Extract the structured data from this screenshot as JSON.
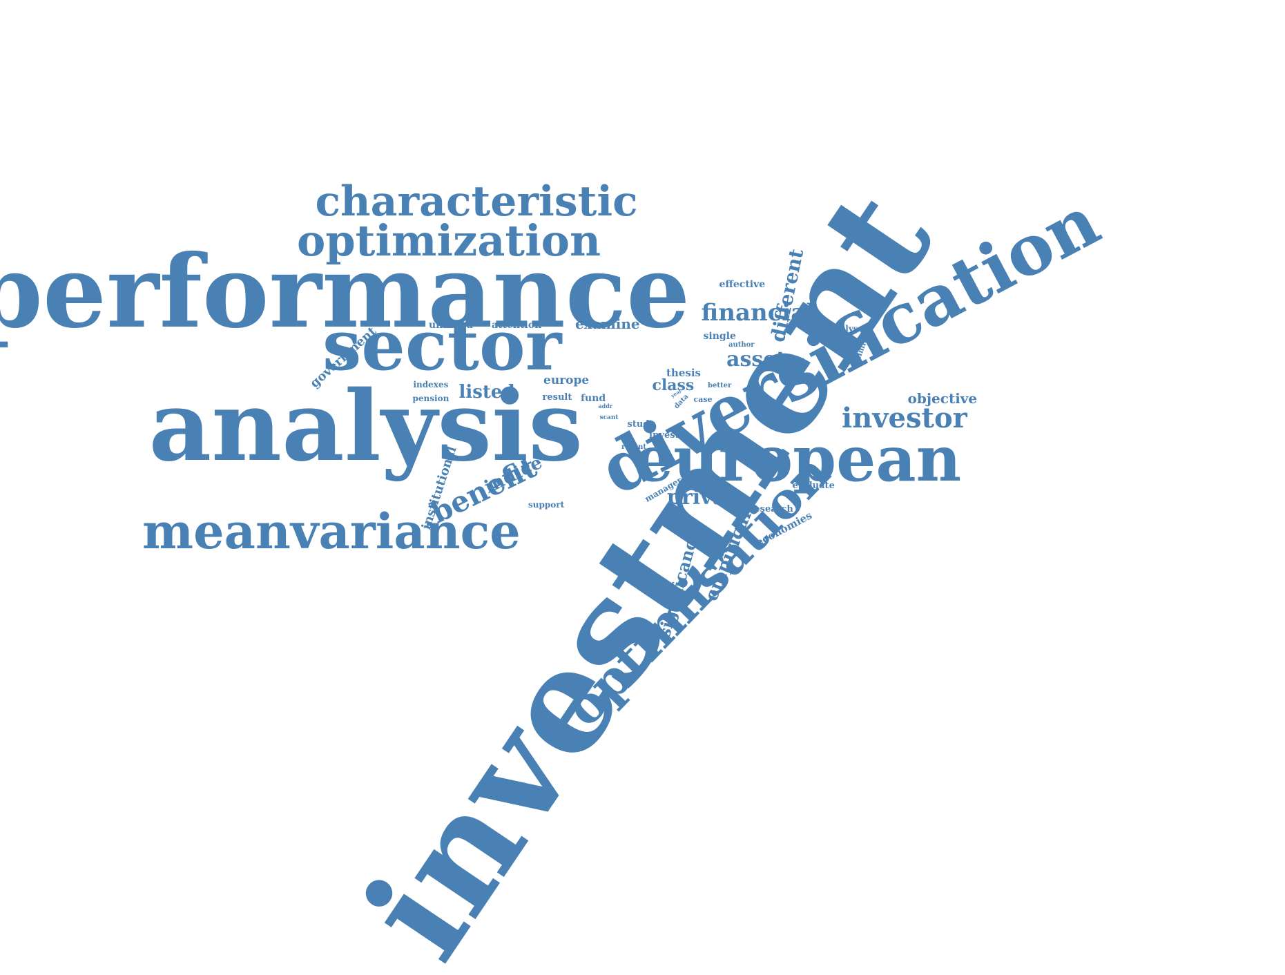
{
  "colors": {
    "word": "#4a81b4",
    "background": "#ffffff"
  },
  "words": [
    {
      "text": "investment",
      "weight": 1.0,
      "orientation": "diagonal-up"
    },
    {
      "text": "performance",
      "weight": 0.62,
      "orientation": "horizontal"
    },
    {
      "text": "analysis",
      "weight": 0.6,
      "orientation": "horizontal"
    },
    {
      "text": "diversification",
      "weight": 0.44,
      "orientation": "diagonal-up"
    },
    {
      "text": "sector",
      "weight": 0.44,
      "orientation": "horizontal"
    },
    {
      "text": "european",
      "weight": 0.4,
      "orientation": "horizontal"
    },
    {
      "text": "optimisation",
      "weight": 0.34,
      "orientation": "diagonal-up"
    },
    {
      "text": "meanvariance",
      "weight": 0.3,
      "orientation": "horizontal"
    },
    {
      "text": "optimization",
      "weight": 0.3,
      "orientation": "horizontal"
    },
    {
      "text": "characteristic",
      "weight": 0.28,
      "orientation": "horizontal"
    },
    {
      "text": "investor",
      "weight": 0.18,
      "orientation": "horizontal"
    },
    {
      "text": "benefit",
      "weight": 0.17,
      "orientation": "diagonal-up"
    },
    {
      "text": "financial",
      "weight": 0.14,
      "orientation": "horizontal"
    },
    {
      "text": "private",
      "weight": 0.14,
      "orientation": "horizontal"
    },
    {
      "text": "asset",
      "weight": 0.13,
      "orientation": "horizontal"
    },
    {
      "text": "different",
      "weight": 0.12,
      "orientation": "vertical-up"
    },
    {
      "text": "indice",
      "weight": 0.12,
      "orientation": "diagonal-up"
    },
    {
      "text": "empirical",
      "weight": 0.11,
      "orientation": "vertical-up"
    },
    {
      "text": "listed",
      "weight": 0.1,
      "orientation": "horizontal"
    },
    {
      "text": "significance",
      "weight": 0.1,
      "orientation": "vertical-up"
    },
    {
      "text": "class",
      "weight": 0.09,
      "orientation": "horizontal"
    },
    {
      "text": "objective",
      "weight": 0.08,
      "orientation": "horizontal"
    },
    {
      "text": "examine",
      "weight": 0.08,
      "orientation": "horizontal"
    },
    {
      "text": "institutional",
      "weight": 0.07,
      "orientation": "vertical-up"
    },
    {
      "text": "government",
      "weight": 0.07,
      "orientation": "diagonal-up"
    },
    {
      "text": "europe",
      "weight": 0.06,
      "orientation": "horizontal"
    },
    {
      "text": "thesis",
      "weight": 0.06,
      "orientation": "horizontal"
    },
    {
      "text": "economies",
      "weight": 0.06,
      "orientation": "diagonal-up"
    },
    {
      "text": "effective",
      "weight": 0.05,
      "orientation": "horizontal"
    },
    {
      "text": "attention",
      "weight": 0.05,
      "orientation": "horizontal"
    },
    {
      "text": "unlisted",
      "weight": 0.05,
      "orientation": "horizontal"
    },
    {
      "text": "single",
      "weight": 0.05,
      "orientation": "horizontal"
    },
    {
      "text": "fund",
      "weight": 0.05,
      "orientation": "horizontal"
    },
    {
      "text": "result",
      "weight": 0.05,
      "orientation": "horizontal"
    },
    {
      "text": "study",
      "weight": 0.05,
      "orientation": "horizontal"
    },
    {
      "text": "invest",
      "weight": 0.05,
      "orientation": "horizontal"
    },
    {
      "text": "evaluate",
      "weight": 0.05,
      "orientation": "horizontal"
    },
    {
      "text": "research",
      "weight": 0.05,
      "orientation": "horizontal"
    },
    {
      "text": "manager",
      "weight": 0.05,
      "orientation": "diagonal-up"
    },
    {
      "text": "support",
      "weight": 0.04,
      "orientation": "horizontal"
    },
    {
      "text": "pension",
      "weight": 0.04,
      "orientation": "horizontal"
    },
    {
      "text": "indexes",
      "weight": 0.04,
      "orientation": "horizontal"
    },
    {
      "text": "analyse",
      "weight": 0.04,
      "orientation": "horizontal"
    },
    {
      "text": "limited",
      "weight": 0.04,
      "orientation": "vertical-up"
    },
    {
      "text": "author",
      "weight": 0.03,
      "orientation": "horizontal"
    },
    {
      "text": "better",
      "weight": 0.03,
      "orientation": "horizontal"
    },
    {
      "text": "case",
      "weight": 0.03,
      "orientation": "horizontal"
    },
    {
      "text": "data",
      "weight": 0.03,
      "orientation": "diagonal-up"
    },
    {
      "text": "recent",
      "weight": 0.03,
      "orientation": "horizontal"
    },
    {
      "text": "scant",
      "weight": 0.02,
      "orientation": "horizontal"
    },
    {
      "text": "addr",
      "weight": 0.02,
      "orientation": "horizontal"
    },
    {
      "text": "year",
      "weight": 0.02,
      "orientation": "diagonal-up"
    }
  ]
}
